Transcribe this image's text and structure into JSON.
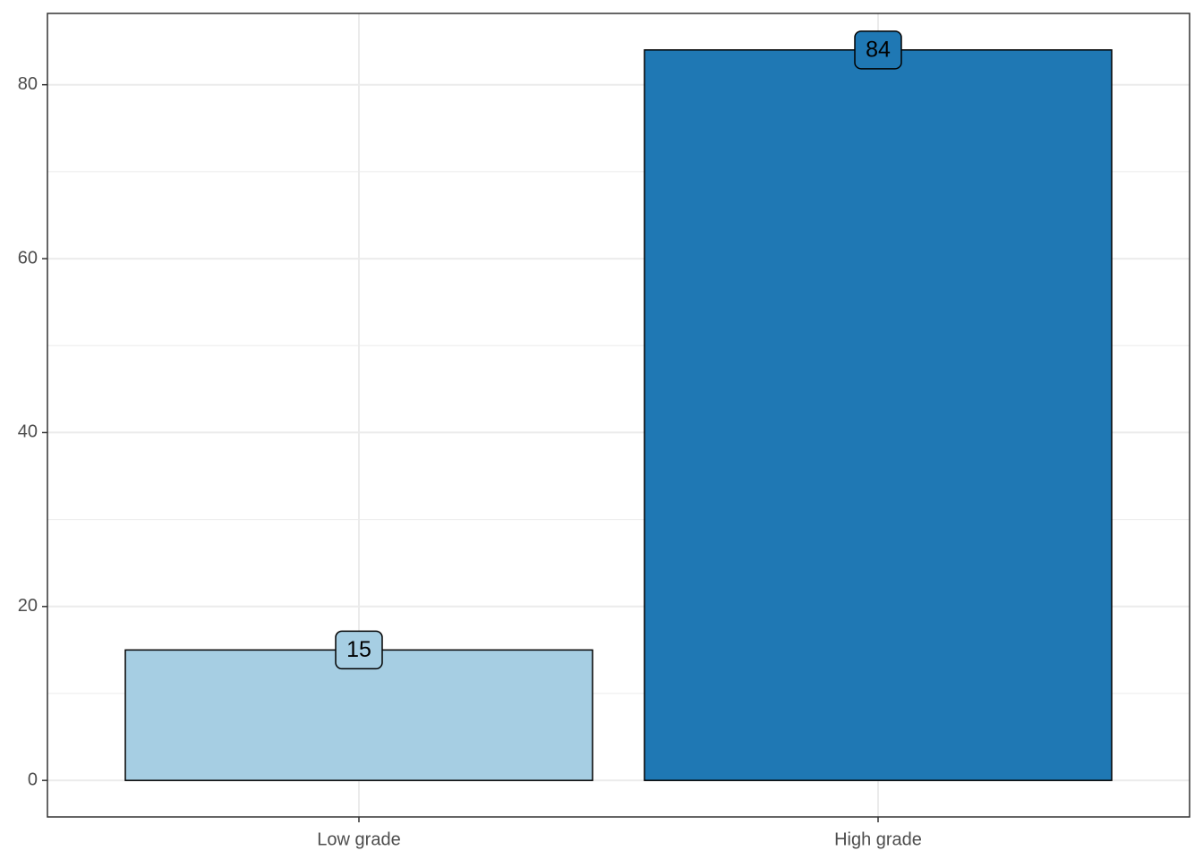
{
  "chart_data": {
    "type": "bar",
    "categories": [
      "Low grade",
      "High grade"
    ],
    "values": [
      15,
      84
    ],
    "colors": [
      "#a6cee3",
      "#1f78b4"
    ],
    "ylim": [
      -4.2,
      88.2
    ],
    "yticks": [
      0,
      20,
      40,
      60,
      80
    ],
    "y_minor_ticks": [
      10,
      30,
      50,
      70
    ],
    "grid": true
  }
}
